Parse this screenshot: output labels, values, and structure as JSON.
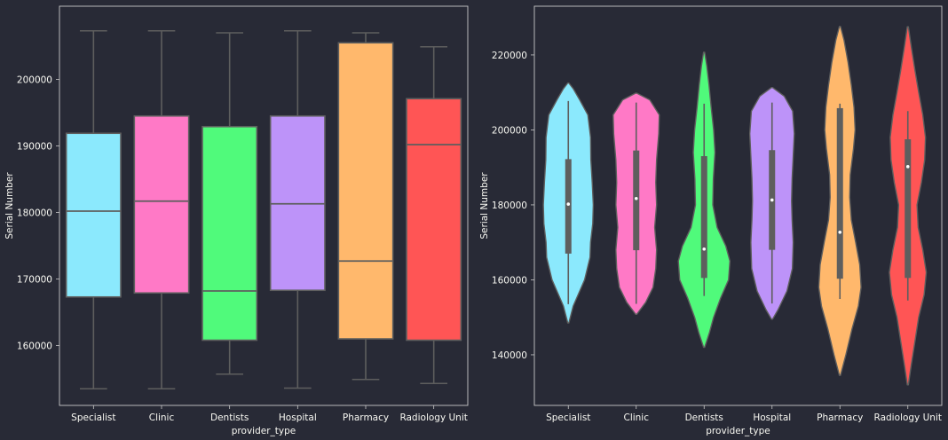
{
  "style": {
    "background": "#282a36",
    "axes_edge": "#c8c8c8",
    "text_color": "#f8f8f2",
    "line_color": "#5e5e5e"
  },
  "chart_data": [
    {
      "type": "box",
      "xlabel": "provider_type",
      "ylabel": "Serial Number",
      "ylim": [
        151000,
        211000
      ],
      "yticks": [
        160000,
        170000,
        180000,
        190000,
        200000
      ],
      "ytick_labels": [
        "160000",
        "170000",
        "180000",
        "190000",
        "200000"
      ],
      "grid": false,
      "categories": [
        "Specialist",
        "Clinic",
        "Dentists",
        "Hospital",
        "Pharmacy",
        "Radiology Unit"
      ],
      "colors": [
        "#8be9fd",
        "#ff79c6",
        "#50fa7b",
        "#bd93f9",
        "#ffb86c",
        "#ff5555"
      ],
      "boxes": [
        {
          "category": "Specialist",
          "whisker_low": 153500,
          "q1": 167300,
          "median": 180200,
          "q3": 191900,
          "whisker_high": 207300
        },
        {
          "category": "Clinic",
          "whisker_low": 153500,
          "q1": 167900,
          "median": 181700,
          "q3": 194500,
          "whisker_high": 207300
        },
        {
          "category": "Dentists",
          "whisker_low": 155700,
          "q1": 160800,
          "median": 168200,
          "q3": 192900,
          "whisker_high": 207000
        },
        {
          "category": "Hospital",
          "whisker_low": 153600,
          "q1": 168300,
          "median": 181300,
          "q3": 194500,
          "whisker_high": 207300
        },
        {
          "category": "Pharmacy",
          "whisker_low": 154900,
          "q1": 161000,
          "median": 172700,
          "q3": 205500,
          "whisker_high": 207000
        },
        {
          "category": "Radiology Unit",
          "whisker_low": 154300,
          "q1": 160800,
          "median": 190200,
          "q3": 197100,
          "whisker_high": 204900
        }
      ]
    },
    {
      "type": "violin",
      "xlabel": "provider_type",
      "ylabel": "Serial Number",
      "ylim": [
        126500,
        233000
      ],
      "yticks": [
        140000,
        160000,
        180000,
        200000,
        220000
      ],
      "ytick_labels": [
        "140000",
        "160000",
        "180000",
        "200000",
        "220000"
      ],
      "grid": false,
      "categories": [
        "Specialist",
        "Clinic",
        "Dentists",
        "Hospital",
        "Pharmacy",
        "Radiology Unit"
      ],
      "colors": [
        "#8be9fd",
        "#ff79c6",
        "#50fa7b",
        "#bd93f9",
        "#ffb86c",
        "#ff5555"
      ],
      "violins": [
        {
          "category": "Specialist",
          "min": 148500,
          "max": 212500,
          "whisker_low": 153500,
          "q1": 167000,
          "median": 180200,
          "q3": 192200,
          "whisker_high": 207700,
          "profile": [
            [
              148500,
              0.02
            ],
            [
              153000,
              0.18
            ],
            [
              160000,
              0.6
            ],
            [
              166000,
              0.8
            ],
            [
              170000,
              0.82
            ],
            [
              175000,
              0.9
            ],
            [
              180000,
              0.92
            ],
            [
              186000,
              0.88
            ],
            [
              192000,
              0.83
            ],
            [
              198000,
              0.82
            ],
            [
              204000,
              0.72
            ],
            [
              208000,
              0.42
            ],
            [
              211000,
              0.18
            ],
            [
              212500,
              0.02
            ]
          ]
        },
        {
          "category": "Clinic",
          "min": 150800,
          "max": 209800,
          "whisker_low": 153600,
          "q1": 167900,
          "median": 181700,
          "q3": 194500,
          "whisker_high": 207300,
          "profile": [
            [
              150800,
              0.02
            ],
            [
              154000,
              0.35
            ],
            [
              158000,
              0.62
            ],
            [
              163000,
              0.72
            ],
            [
              168000,
              0.75
            ],
            [
              174000,
              0.68
            ],
            [
              180000,
              0.75
            ],
            [
              186000,
              0.72
            ],
            [
              192000,
              0.75
            ],
            [
              199000,
              0.83
            ],
            [
              204000,
              0.85
            ],
            [
              208000,
              0.5
            ],
            [
              209800,
              0.02
            ]
          ]
        },
        {
          "category": "Dentists",
          "min": 142000,
          "max": 220700,
          "whisker_low": 155700,
          "q1": 160500,
          "median": 168200,
          "q3": 193000,
          "whisker_high": 207000,
          "profile": [
            [
              142000,
              0.02
            ],
            [
              146000,
              0.2
            ],
            [
              150000,
              0.35
            ],
            [
              155000,
              0.6
            ],
            [
              160000,
              0.9
            ],
            [
              165000,
              0.95
            ],
            [
              169000,
              0.8
            ],
            [
              174000,
              0.48
            ],
            [
              180000,
              0.32
            ],
            [
              187000,
              0.34
            ],
            [
              194000,
              0.4
            ],
            [
              200000,
              0.35
            ],
            [
              206000,
              0.26
            ],
            [
              212000,
              0.18
            ],
            [
              217000,
              0.1
            ],
            [
              220700,
              0.02
            ]
          ]
        },
        {
          "category": "Hospital",
          "min": 149500,
          "max": 211300,
          "whisker_low": 153700,
          "q1": 168000,
          "median": 181300,
          "q3": 194600,
          "whisker_high": 207300,
          "profile": [
            [
              149500,
              0.02
            ],
            [
              152000,
              0.22
            ],
            [
              157000,
              0.55
            ],
            [
              163000,
              0.75
            ],
            [
              170000,
              0.78
            ],
            [
              176000,
              0.74
            ],
            [
              181000,
              0.72
            ],
            [
              187000,
              0.74
            ],
            [
              193000,
              0.78
            ],
            [
              199000,
              0.82
            ],
            [
              205000,
              0.76
            ],
            [
              209000,
              0.45
            ],
            [
              211300,
              0.02
            ]
          ]
        },
        {
          "category": "Pharmacy",
          "min": 134500,
          "max": 227600,
          "whisker_low": 154900,
          "q1": 160300,
          "median": 172700,
          "q3": 205800,
          "whisker_high": 207000,
          "profile": [
            [
              134500,
              0.02
            ],
            [
              140000,
              0.22
            ],
            [
              147000,
              0.45
            ],
            [
              153000,
              0.68
            ],
            [
              158000,
              0.78
            ],
            [
              164000,
              0.73
            ],
            [
              170000,
              0.58
            ],
            [
              176000,
              0.42
            ],
            [
              182000,
              0.36
            ],
            [
              188000,
              0.38
            ],
            [
              195000,
              0.5
            ],
            [
              200000,
              0.56
            ],
            [
              206000,
              0.52
            ],
            [
              212000,
              0.42
            ],
            [
              218000,
              0.3
            ],
            [
              224000,
              0.15
            ],
            [
              227600,
              0.02
            ]
          ]
        },
        {
          "category": "Radiology Unit",
          "min": 132000,
          "max": 227500,
          "whisker_low": 154500,
          "q1": 160500,
          "median": 190200,
          "q3": 197500,
          "whisker_high": 205000,
          "profile": [
            [
              132000,
              0.02
            ],
            [
              137000,
              0.12
            ],
            [
              143000,
              0.25
            ],
            [
              150000,
              0.4
            ],
            [
              156000,
              0.6
            ],
            [
              162000,
              0.68
            ],
            [
              168000,
              0.55
            ],
            [
              174000,
              0.38
            ],
            [
              180000,
              0.34
            ],
            [
              186000,
              0.5
            ],
            [
              192000,
              0.62
            ],
            [
              198000,
              0.65
            ],
            [
              204000,
              0.55
            ],
            [
              210000,
              0.4
            ],
            [
              216000,
              0.26
            ],
            [
              222000,
              0.13
            ],
            [
              227500,
              0.02
            ]
          ]
        }
      ]
    }
  ]
}
